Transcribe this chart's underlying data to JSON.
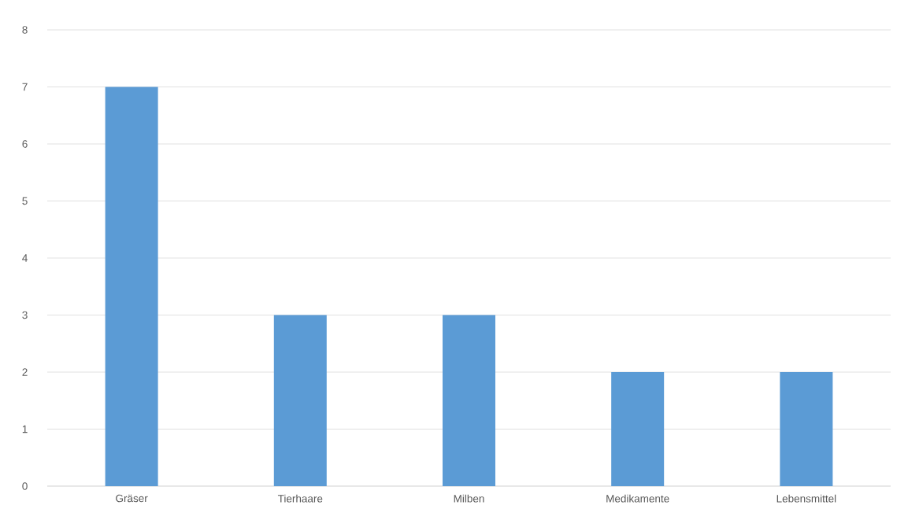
{
  "chart_data": {
    "type": "bar",
    "categories": [
      "Gräser",
      "Tierhaare",
      "Milben",
      "Medikamente",
      "Lebensmittel"
    ],
    "values": [
      7,
      3,
      3,
      2,
      2
    ],
    "color": "#5b9bd5",
    "ylim": [
      0,
      8
    ],
    "yticks": [
      0,
      1,
      2,
      3,
      4,
      5,
      6,
      7,
      8
    ],
    "grid": "y"
  }
}
